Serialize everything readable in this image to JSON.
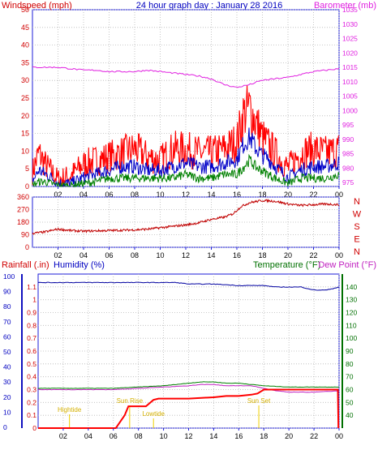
{
  "header": {
    "title": "24 hour graph day : January 28 2016",
    "left_label": "Windspeed (mph)",
    "right_label": "Barometer (mb)"
  },
  "bottom_labels": {
    "rainfall": "Rainfall (.in)",
    "humidity": "Humidity (%)",
    "temperature": "Temperature (°F)",
    "dewpoint": "Dew Point (°F)"
  },
  "colors": {
    "frame": "#1c1cd8",
    "wind": "#ff0000",
    "wind_avg": "#0000c8",
    "wind_low": "#008000",
    "baro": "#e020e0",
    "direction": "#c00000",
    "rain": "#ff0000",
    "humidity": "#0000a0",
    "temperature": "#008000",
    "dewpoint": "#c020c0",
    "event": "#f0d000"
  },
  "chart_data": [
    {
      "type": "line",
      "title": "24 hour graph day : January 28 2016",
      "x_ticks": [
        "02",
        "04",
        "06",
        "08",
        "10",
        "12",
        "14",
        "16",
        "18",
        "20",
        "22",
        "00"
      ],
      "left_axis": {
        "label": "Windspeed (mph)",
        "ticks": [
          0,
          5,
          10,
          15,
          20,
          25,
          30,
          35,
          40,
          45,
          50
        ],
        "ylim": [
          0,
          50
        ]
      },
      "right_axis": {
        "label": "Barometer (mb)",
        "ticks": [
          975,
          980,
          985,
          990,
          995,
          1000,
          1005,
          1010,
          1015,
          1020,
          1025,
          1030,
          1035
        ],
        "ylim": [
          975,
          1035
        ]
      },
      "series": [
        {
          "name": "Windspeed (mph)",
          "axis": "left",
          "hours": [
            0,
            0.5,
            1,
            1.5,
            2,
            3,
            4,
            5,
            6,
            7,
            8,
            9,
            10,
            11,
            12,
            13,
            14,
            15,
            16,
            16.5,
            17,
            17.5,
            18,
            18.5,
            19,
            20,
            21,
            22,
            23,
            24
          ],
          "values": [
            3,
            8,
            5,
            3,
            1,
            2,
            5,
            6,
            7,
            8,
            9,
            7,
            6,
            9,
            9,
            8,
            8,
            9,
            11,
            18,
            20,
            16,
            12,
            10,
            8,
            4,
            8,
            9,
            8,
            9
          ]
        },
        {
          "name": "Average",
          "axis": "left",
          "hours": [
            0,
            0.5,
            1,
            1.5,
            2,
            3,
            4,
            5,
            6,
            7,
            8,
            9,
            10,
            11,
            12,
            13,
            14,
            15,
            16,
            16.5,
            17,
            17.5,
            18,
            18.5,
            19,
            20,
            21,
            22,
            23,
            24
          ],
          "values": [
            1,
            4,
            3,
            2,
            0.5,
            0.5,
            2,
            3,
            4,
            5,
            5,
            4,
            4,
            5,
            6,
            5,
            5,
            6,
            7,
            11,
            13,
            10,
            8,
            7,
            5,
            2,
            4,
            5,
            5,
            6
          ]
        },
        {
          "name": "Low",
          "axis": "left",
          "hours": [
            0,
            0.5,
            1,
            1.5,
            2,
            3,
            4,
            5,
            6,
            7,
            8,
            9,
            10,
            11,
            12,
            13,
            14,
            15,
            16,
            16.5,
            17,
            17.5,
            18,
            18.5,
            19,
            20,
            21,
            22,
            23,
            24
          ],
          "values": [
            0,
            1,
            1,
            0.5,
            0,
            0,
            0.5,
            1,
            2,
            2,
            2,
            2,
            2,
            2,
            3,
            2,
            2,
            3,
            3,
            5,
            7,
            5,
            4,
            3,
            2,
            0.5,
            2,
            2,
            2,
            3
          ]
        },
        {
          "name": "Barometer (mb)",
          "axis": "right",
          "hours": [
            0,
            1,
            2,
            3,
            4,
            5,
            6,
            7,
            8,
            9,
            10,
            11,
            12,
            13,
            14,
            15,
            16,
            17,
            18,
            19,
            20,
            21,
            22,
            23,
            24
          ],
          "values": [
            1015,
            1015,
            1015,
            1014.5,
            1014,
            1014,
            1013.5,
            1013.5,
            1013.5,
            1014,
            1013.5,
            1013,
            1012.5,
            1012,
            1011,
            1009,
            1008,
            1009,
            1010.5,
            1011,
            1011.5,
            1012.5,
            1013.5,
            1014,
            1014.5
          ]
        }
      ]
    },
    {
      "type": "line",
      "x_ticks": [
        "02",
        "04",
        "06",
        "08",
        "10",
        "12",
        "14",
        "16",
        "18",
        "20",
        "22",
        "00"
      ],
      "left_axis": {
        "ticks": [
          0,
          90,
          180,
          270,
          360
        ],
        "ylim": [
          0,
          360
        ]
      },
      "right_axis": {
        "ticks": [
          "N",
          "W",
          "S",
          "E",
          "N"
        ]
      },
      "series": [
        {
          "name": "Wind direction",
          "hours": [
            0,
            1,
            2,
            3,
            4,
            5,
            6,
            7,
            8,
            9,
            10,
            11,
            12,
            13,
            14,
            15,
            15.7,
            16.3,
            17,
            18,
            19,
            20,
            21,
            22,
            23,
            24
          ],
          "values": [
            100,
            110,
            130,
            120,
            115,
            118,
            120,
            122,
            125,
            130,
            140,
            150,
            160,
            175,
            200,
            215,
            240,
            290,
            320,
            335,
            330,
            310,
            300,
            305,
            310,
            305
          ]
        }
      ]
    },
    {
      "type": "line",
      "x_ticks": [
        "02",
        "04",
        "06",
        "08",
        "10",
        "12",
        "14",
        "16",
        "18",
        "20",
        "22",
        "00"
      ],
      "left_axis": {
        "label": "Rainfall (.in)",
        "ticks": [
          0,
          0.1,
          0.2,
          0.3,
          0.4,
          0.5,
          0.6,
          0.7,
          0.8,
          0.9,
          1,
          1.1
        ],
        "ylim": [
          0,
          1.2
        ]
      },
      "humidity_axis": {
        "label": "Humidity (%)",
        "ticks": [
          0,
          10,
          20,
          30,
          40,
          50,
          60,
          70,
          80,
          90,
          100
        ],
        "ylim": [
          0,
          100
        ]
      },
      "right_axis": {
        "label": "Temperature (°F)",
        "ticks": [
          40,
          50,
          60,
          70,
          80,
          90,
          100,
          110,
          120,
          130,
          140
        ],
        "ylim": [
          30,
          150
        ]
      },
      "annotations": [
        {
          "text": "Hightide",
          "hour": 2.5
        },
        {
          "text": "Sun Rise",
          "hour": 7.3
        },
        {
          "text": "Lowtide",
          "hour": 9.2
        },
        {
          "text": "Sun Set",
          "hour": 17.6
        }
      ],
      "series": [
        {
          "name": "Rainfall (.in)",
          "hours": [
            0,
            6.2,
            6.9,
            7.2,
            7.8,
            8.6,
            9.2,
            9.6,
            10,
            12,
            14,
            15,
            16,
            17,
            17.5,
            18,
            18.5,
            19,
            22,
            23.9,
            23.95
          ],
          "values": [
            0,
            0,
            0.1,
            0.17,
            0.17,
            0.17,
            0.22,
            0.23,
            0.23,
            0.23,
            0.24,
            0.25,
            0.25,
            0.26,
            0.27,
            0.3,
            0.3,
            0.3,
            0.3,
            0.3,
            0
          ]
        },
        {
          "name": "Humidity (%)",
          "hours": [
            0,
            2,
            4,
            6,
            8,
            10,
            11,
            12,
            14,
            16,
            17,
            18,
            19,
            20,
            21,
            22,
            23,
            24
          ],
          "values": [
            96,
            96,
            96,
            96,
            96,
            96,
            96,
            95,
            95,
            94,
            94,
            94,
            93,
            93,
            93,
            91,
            91,
            93
          ]
        },
        {
          "name": "Temperature (°F)",
          "hours": [
            0,
            2,
            4,
            6,
            8,
            10,
            12,
            13,
            14,
            15,
            16,
            17,
            18,
            20,
            22,
            24
          ],
          "values": [
            61,
            61,
            61,
            61,
            62,
            63,
            65,
            66,
            66,
            65,
            65,
            64,
            63,
            62,
            62,
            62
          ]
        },
        {
          "name": "Dew Point (°F)",
          "hours": [
            0,
            2,
            4,
            6,
            8,
            10,
            12,
            13,
            14,
            15,
            16,
            17,
            18,
            19,
            20,
            22,
            24
          ],
          "values": [
            60,
            60,
            60,
            60,
            61,
            62,
            63,
            64,
            64,
            63,
            63,
            63,
            61,
            59,
            58,
            58,
            59
          ]
        }
      ]
    }
  ]
}
